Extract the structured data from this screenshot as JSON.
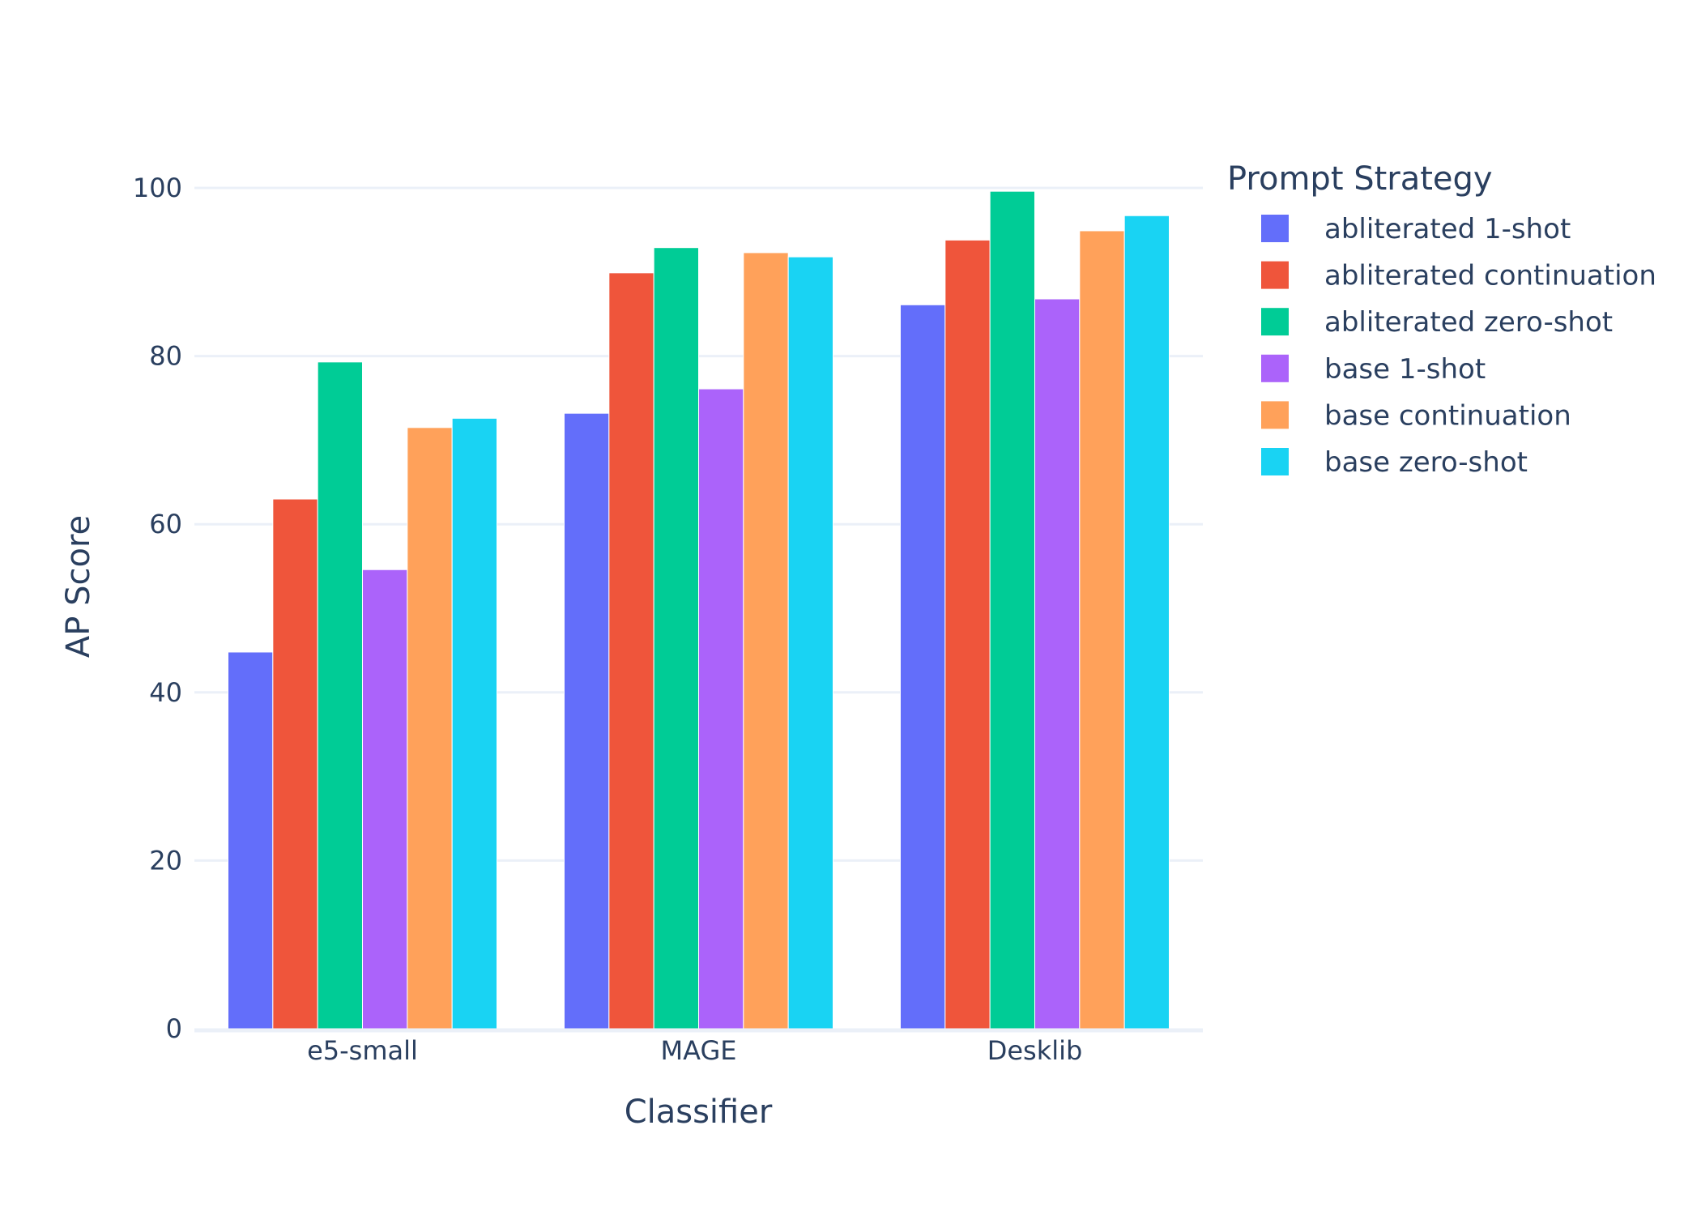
{
  "chart_data": {
    "type": "bar",
    "title": "",
    "xlabel": "Classifier",
    "ylabel": "AP Score",
    "categories": [
      "e5-small",
      "MAGE",
      "Desklib"
    ],
    "ylim": [
      0,
      104
    ],
    "yticks": [
      0,
      20,
      40,
      60,
      80,
      100
    ],
    "grid": true,
    "legend_title": "Prompt Strategy",
    "legend_position": "right",
    "series": [
      {
        "name": "abliterated 1-shot",
        "color": "#636efa",
        "values": [
          44.8,
          73.2,
          86.1
        ]
      },
      {
        "name": "abliterated continuation",
        "color": "#ef553b",
        "values": [
          63.0,
          89.9,
          93.8
        ]
      },
      {
        "name": "abliterated zero-shot",
        "color": "#00cc96",
        "values": [
          79.3,
          92.9,
          99.6
        ]
      },
      {
        "name": "base 1-shot",
        "color": "#ab63fa",
        "values": [
          54.6,
          76.1,
          86.8
        ]
      },
      {
        "name": "base continuation",
        "color": "#ffa15a",
        "values": [
          71.5,
          92.3,
          94.9
        ]
      },
      {
        "name": "base zero-shot",
        "color": "#19d3f3",
        "values": [
          72.6,
          91.8,
          96.7
        ]
      }
    ]
  }
}
